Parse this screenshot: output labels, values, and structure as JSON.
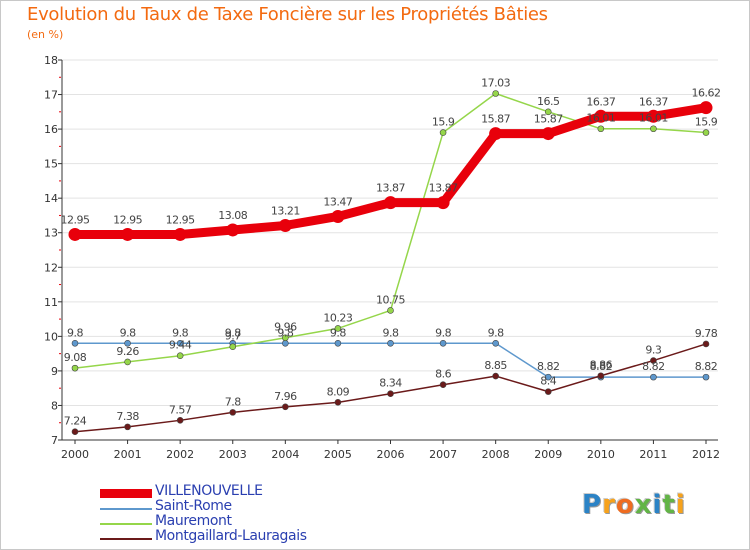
{
  "title": "Evolution du Taux de Taxe Foncière sur les Propriétés Bâties",
  "unit": "(en %)",
  "logo": "Proxiti",
  "chart_data": {
    "type": "line",
    "title": "Evolution du Taux de Taxe Foncière sur les Propriétés Bâties",
    "ylabel": "(en %)",
    "xlabel": "",
    "ylim": [
      7,
      18
    ],
    "yticks": [
      "7",
      "8",
      "9",
      "10",
      "11",
      "12",
      "13",
      "14",
      "15",
      "16",
      "17",
      "18"
    ],
    "categories": [
      "2000",
      "2001",
      "2002",
      "2003",
      "2004",
      "2005",
      "2006",
      "2007",
      "2008",
      "2009",
      "2010",
      "2011",
      "2012"
    ],
    "series": [
      {
        "name": "VILLENOUVELLE",
        "color": "#e8000b",
        "values": [
          12.95,
          12.95,
          12.95,
          13.08,
          13.21,
          13.47,
          13.87,
          13.87,
          15.87,
          15.87,
          16.37,
          16.37,
          16.62
        ],
        "labels": [
          "12.95",
          "12.95",
          "12.95",
          "13.08",
          "13.21",
          "13.47",
          "13.87",
          "13.87",
          "15.87",
          "15.87",
          "16.37",
          "16.37",
          "16.62"
        ]
      },
      {
        "name": "Saint-Rome",
        "color": "#5e98cd",
        "values": [
          9.8,
          9.8,
          9.8,
          9.8,
          9.8,
          9.8,
          9.8,
          9.8,
          9.8,
          8.82,
          8.82,
          8.82,
          8.82
        ],
        "labels": [
          "9.8",
          "9.8",
          "9.8",
          "9.8",
          "9.8",
          "9.8",
          "9.8",
          "9.8",
          "9.8",
          "8.82",
          "8.82",
          "8.82",
          "8.82"
        ]
      },
      {
        "name": "Mauremont",
        "color": "#95d64a",
        "values": [
          9.08,
          9.26,
          9.44,
          9.7,
          9.96,
          10.23,
          10.75,
          15.9,
          17.03,
          16.5,
          16.01,
          16.01,
          15.9
        ],
        "labels": [
          "9.08",
          "9.26",
          "9.44",
          "9.7",
          "9.96",
          "10.23",
          "10.75",
          "15.9",
          "17.03",
          "16.5",
          "16.01",
          "16.01",
          "15.9"
        ]
      },
      {
        "name": "Montgaillard-Lauragais",
        "color": "#6b1a1a",
        "values": [
          7.24,
          7.38,
          7.57,
          7.8,
          7.96,
          8.09,
          8.34,
          8.6,
          8.85,
          8.4,
          8.86,
          9.3,
          9.78
        ],
        "labels": [
          "7.24",
          "7.38",
          "7.57",
          "7.8",
          "7.96",
          "8.09",
          "8.34",
          "8.6",
          "8.85",
          "8.4",
          "8.86",
          "9.3",
          "9.78"
        ]
      }
    ]
  }
}
